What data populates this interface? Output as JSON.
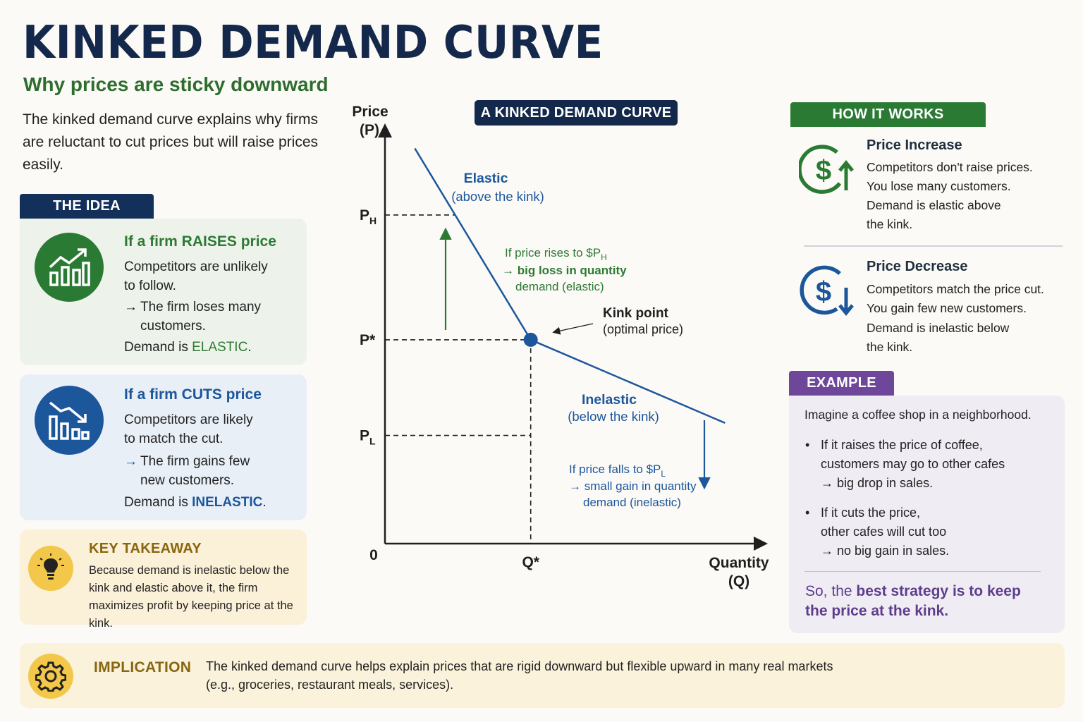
{
  "header": {
    "title": "KINKED DEMAND CURVE",
    "subtitle": "Why prices are sticky downward",
    "intro": "The kinked demand curve explains why firms are reluctant to cut prices but will raise prices easily."
  },
  "idea": {
    "tag": "THE IDEA",
    "raise": {
      "title": "If a firm RAISES price",
      "line1": "Competitors are unlikely",
      "line2": "to follow.",
      "arrow": "→",
      "line3": "The firm loses many",
      "line4": "customers.",
      "demand_prefix": "Demand is ",
      "demand_value": "ELASTIC",
      "demand_suffix": ".",
      "icon": "bar-chart-up-icon"
    },
    "cut": {
      "title": "If a firm CUTS price",
      "line1": "Competitors are likely",
      "line2": "to match the cut.",
      "arrow": "→",
      "line3": "The firm gains few",
      "line4": "new customers.",
      "demand_prefix": "Demand is ",
      "demand_value": "INELASTIC",
      "demand_suffix": ".",
      "icon": "bar-chart-down-icon"
    },
    "takeaway": {
      "title": "KEY TAKEAWAY",
      "text": "Because demand is inelastic below the kink and elastic above it, the firm maximizes profit by keeping price at the kink.",
      "icon": "lightbulb-icon"
    }
  },
  "chart_tag": "A KINKED DEMAND CURVE",
  "chart_data": {
    "type": "line",
    "title": "A KINKED DEMAND CURVE",
    "ylabel_line1": "Price",
    "ylabel_line2": "(P)",
    "xlabel_line1": "Quantity",
    "xlabel_line2": "(Q)",
    "origin_label": "0",
    "y_ticks": {
      "PH": "P",
      "PH_sub": "H",
      "Pstar": "P*",
      "PL": "P",
      "PL_sub": "L"
    },
    "x_ticks": {
      "Qstar": "Q*"
    },
    "xlim": [
      0,
      10
    ],
    "ylim": [
      0,
      10
    ],
    "levels": {
      "PH": 7.9,
      "Pstar": 4.9,
      "PL": 2.6,
      "Qstar": 3.9
    },
    "series": [
      {
        "segment": "elastic",
        "x": [
          0.8,
          3.9
        ],
        "y": [
          9.5,
          4.9
        ]
      },
      {
        "segment": "inelastic",
        "x": [
          3.9,
          9.1
        ],
        "y": [
          4.9,
          2.9
        ]
      }
    ],
    "kink": {
      "x": 3.9,
      "y": 4.9
    },
    "annotations": {
      "elastic_l1": "Elastic",
      "elastic_l2": "(above the kink)",
      "rise_l1": "If price rises to $P",
      "rise_sub": "H",
      "rise_l2": "→ big loss in quantity",
      "rise_l3": "demand (elastic)",
      "kink_l1": "Kink point",
      "kink_l2": "(optimal price)",
      "inelastic_l1": "Inelastic",
      "inelastic_l2": "(below the kink)",
      "fall_l1": "If price falls to $P",
      "fall_sub": "L",
      "fall_l2": "→ small gain in quantity",
      "fall_l3": "demand (inelastic)"
    },
    "colors": {
      "curve": "#1c569b",
      "rise_arrow": "#2e7a34",
      "axis": "#1f1f1f"
    }
  },
  "how": {
    "tag": "HOW IT WORKS",
    "increase": {
      "title": "Price Increase",
      "lines": [
        "Competitors don't raise prices.",
        "You lose many customers.",
        "Demand is elastic above",
        "the kink."
      ],
      "icon": "dollar-up-icon"
    },
    "decrease": {
      "title": "Price Decrease",
      "lines": [
        "Competitors match the price cut.",
        "You gain few new customers.",
        "Demand is inelastic below",
        "the kink."
      ],
      "icon": "dollar-down-icon"
    }
  },
  "example": {
    "tag": "EXAMPLE",
    "intro": "Imagine a coffee shop in a neighborhood.",
    "b1": [
      "If it raises the price of coffee,",
      "customers may go to other cafes",
      "→ big drop in sales."
    ],
    "b2": [
      "If it cuts the price,",
      "other cafes will cut too",
      "→ no big gain in sales."
    ],
    "final_pre": "So, the ",
    "final_bold": "best strategy is to keep the price at the kink."
  },
  "implication": {
    "title": "IMPLICATION",
    "line1": "The kinked demand curve helps explain prices that are rigid downward but flexible upward in many real markets",
    "line2": "(e.g., groceries, restaurant meals, services).",
    "icon": "gear-icon"
  },
  "colors": {
    "navy": "#13284a",
    "green": "#2a7a34",
    "blue": "#1c569b",
    "purple": "#6e469a",
    "gold": "#f3c84a"
  }
}
